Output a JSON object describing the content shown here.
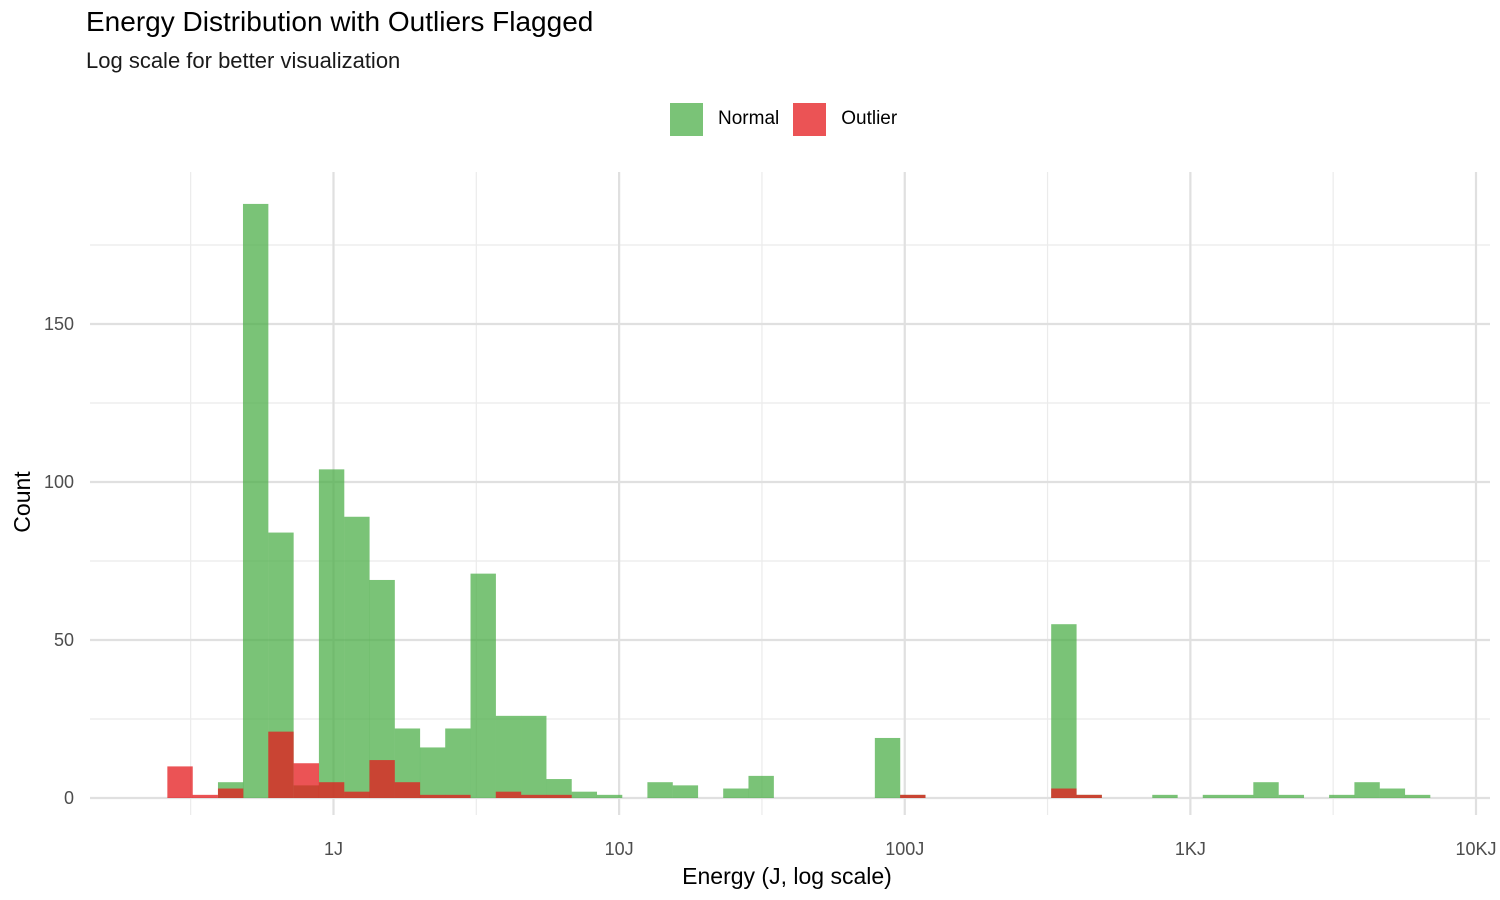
{
  "chart_data": {
    "type": "bar",
    "title": "Energy Distribution with Outliers Flagged",
    "subtitle": "Log scale for better visualization",
    "xlabel": "Energy (J, log scale)",
    "ylabel": "Count",
    "x_scale": "log10",
    "xlim": [
      0.1,
      10000
    ],
    "ylim": [
      0,
      188
    ],
    "x_ticks": [
      {
        "value": 1,
        "label": "1J"
      },
      {
        "value": 10,
        "label": "10J"
      },
      {
        "value": 100,
        "label": "100J"
      },
      {
        "value": 1000,
        "label": "1KJ"
      },
      {
        "value": 10000,
        "label": "10KJ"
      }
    ],
    "y_ticks": [
      {
        "value": 0,
        "label": "0"
      },
      {
        "value": 50,
        "label": "50"
      },
      {
        "value": 100,
        "label": "100"
      },
      {
        "value": 150,
        "label": "150"
      }
    ],
    "grid": true,
    "legend_position": "top",
    "bin_log10_width": 0.0889,
    "series": [
      {
        "name": "Normal",
        "color": "#4DAF4A",
        "opacity": 0.75,
        "bins": [
          {
            "x_start": 0.394,
            "count": 5
          },
          {
            "x_start": 0.482,
            "count": 188
          },
          {
            "x_start": 0.591,
            "count": 84
          },
          {
            "x_start": 0.725,
            "count": 4
          },
          {
            "x_start": 0.889,
            "count": 104
          },
          {
            "x_start": 1.09,
            "count": 89
          },
          {
            "x_start": 1.336,
            "count": 69
          },
          {
            "x_start": 1.638,
            "count": 22
          },
          {
            "x_start": 2.008,
            "count": 16
          },
          {
            "x_start": 2.461,
            "count": 22
          },
          {
            "x_start": 3.018,
            "count": 71
          },
          {
            "x_start": 3.7,
            "count": 26
          },
          {
            "x_start": 4.536,
            "count": 26
          },
          {
            "x_start": 5.561,
            "count": 6
          },
          {
            "x_start": 6.818,
            "count": 2
          },
          {
            "x_start": 8.359,
            "count": 1
          },
          {
            "x_start": 12.56,
            "count": 5
          },
          {
            "x_start": 15.4,
            "count": 4
          },
          {
            "x_start": 23.14,
            "count": 3
          },
          {
            "x_start": 28.37,
            "count": 7
          },
          {
            "x_start": 78.58,
            "count": 19
          },
          {
            "x_start": 96.33,
            "count": 1
          },
          {
            "x_start": 325.6,
            "count": 55
          },
          {
            "x_start": 399.2,
            "count": 1
          },
          {
            "x_start": 735.5,
            "count": 1
          },
          {
            "x_start": 1105,
            "count": 1
          },
          {
            "x_start": 1355,
            "count": 1
          },
          {
            "x_start": 1661,
            "count": 5
          },
          {
            "x_start": 2037,
            "count": 1
          },
          {
            "x_start": 3060,
            "count": 1
          },
          {
            "x_start": 3752,
            "count": 5
          },
          {
            "x_start": 4600,
            "count": 3
          },
          {
            "x_start": 5639,
            "count": 1
          }
        ]
      },
      {
        "name": "Outlier",
        "color": "#E41A1C",
        "opacity": 0.75,
        "bins": [
          {
            "x_start": 0.262,
            "count": 10
          },
          {
            "x_start": 0.321,
            "count": 1
          },
          {
            "x_start": 0.394,
            "count": 3
          },
          {
            "x_start": 0.591,
            "count": 21
          },
          {
            "x_start": 0.725,
            "count": 11
          },
          {
            "x_start": 0.889,
            "count": 5
          },
          {
            "x_start": 1.09,
            "count": 2
          },
          {
            "x_start": 1.336,
            "count": 12
          },
          {
            "x_start": 1.638,
            "count": 5
          },
          {
            "x_start": 2.008,
            "count": 1
          },
          {
            "x_start": 2.461,
            "count": 1
          },
          {
            "x_start": 3.7,
            "count": 2
          },
          {
            "x_start": 4.536,
            "count": 1
          },
          {
            "x_start": 5.561,
            "count": 1
          },
          {
            "x_start": 96.33,
            "count": 1
          },
          {
            "x_start": 325.6,
            "count": 3
          },
          {
            "x_start": 399.2,
            "count": 1
          }
        ]
      }
    ]
  }
}
